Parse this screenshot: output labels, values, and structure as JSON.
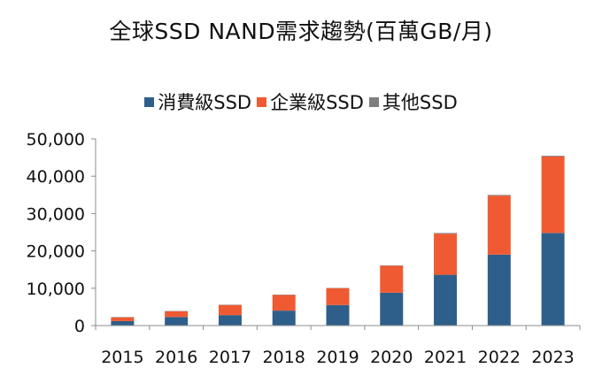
{
  "chart_data": {
    "type": "bar",
    "stacked": true,
    "title": "全球SSD NAND需求趨勢(百萬GB/月)",
    "categories": [
      "2015",
      "2016",
      "2017",
      "2018",
      "2019",
      "2020",
      "2021",
      "2022",
      "2023"
    ],
    "series": [
      {
        "name": "消費級SSD",
        "color": "#2e5f8a",
        "values": [
          1200,
          2300,
          2800,
          4000,
          5500,
          8800,
          13600,
          19000,
          24800
        ]
      },
      {
        "name": "企業級SSD",
        "color": "#f05a32",
        "values": [
          1000,
          1500,
          2700,
          4200,
          4500,
          7200,
          11000,
          15800,
          20500
        ]
      },
      {
        "name": "其他SSD",
        "color": "#7f7f7f",
        "values": [
          100,
          100,
          100,
          100,
          100,
          100,
          200,
          200,
          200
        ]
      }
    ],
    "y_ticks": [
      "0",
      "10,000",
      "20,000",
      "30,000",
      "40,000",
      "50,000"
    ],
    "ylim": [
      0,
      50000
    ],
    "grid": false,
    "legend_position": "top"
  }
}
